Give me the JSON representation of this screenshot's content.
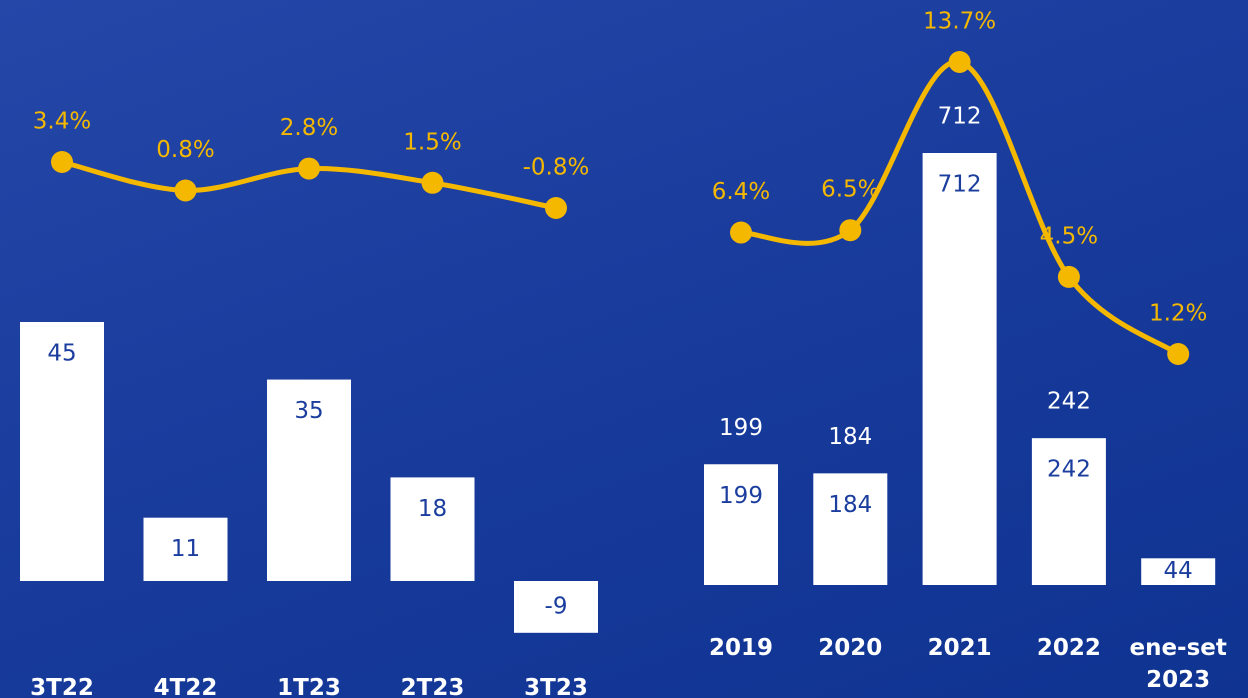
{
  "chart_data": [
    {
      "type": "combo",
      "categories": [
        "3T22",
        "4T22",
        "1T23",
        "2T23",
        "3T23"
      ],
      "bars": {
        "color": "#ffffff",
        "values": [
          45,
          11,
          35,
          18,
          -9
        ]
      },
      "line": {
        "color": "#f5b800",
        "values": [
          3.4,
          0.8,
          2.8,
          1.5,
          -0.8
        ],
        "value_labels": [
          "3.4%",
          "0.8%",
          "2.8%",
          "1.5%",
          "-0.8%"
        ]
      }
    },
    {
      "type": "combo",
      "categories": [
        "2019",
        "2020",
        "2021",
        "2022",
        "ene-set 2023"
      ],
      "bars": {
        "color": "#ffffff",
        "values": [
          199,
          184,
          712,
          242,
          44
        ]
      },
      "line": {
        "color": "#f5b800",
        "values": [
          6.4,
          6.5,
          13.7,
          4.5,
          1.2
        ],
        "value_labels": [
          "6.4%",
          "6.5%",
          "13.7%",
          "4.5%",
          "1.2%"
        ]
      }
    }
  ]
}
